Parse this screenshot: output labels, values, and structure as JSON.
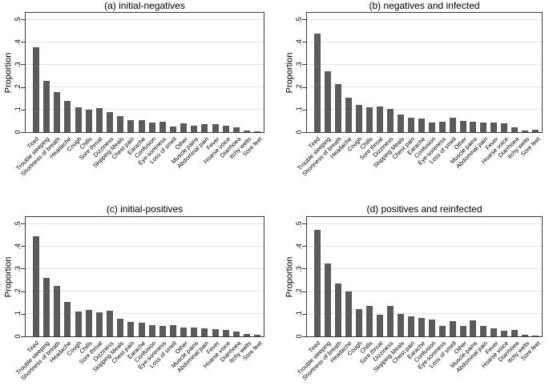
{
  "figure": {
    "ylabel": "Proportion",
    "bar_color": "#5b5b5b",
    "grid_color": "#e4e4e4",
    "axis_color": "#3a3a3a",
    "yticks": [
      {
        "value": 0.0,
        "label": "0"
      },
      {
        "value": 0.1,
        "label": ".1"
      },
      {
        "value": 0.2,
        "label": ".2"
      },
      {
        "value": 0.3,
        "label": ".3"
      },
      {
        "value": 0.4,
        "label": ".4"
      },
      {
        "value": 0.5,
        "label": ".5"
      }
    ]
  },
  "chart_data": [
    {
      "type": "bar",
      "title": "(a) initial-negatives",
      "xlabel": "",
      "ylabel": "Proportion",
      "ylim": [
        0,
        0.5
      ],
      "grid": true,
      "categories": [
        "Tired",
        "Trouble sleeping",
        "Shortness of breath",
        "Headache",
        "Cough",
        "Chills",
        "Sore throat",
        "Dizziness",
        "Skipping Meals",
        "Chest pain",
        "Earache",
        "Confusion",
        "Eye-soreness",
        "Loss of smell",
        "Other",
        "Muscle pains",
        "Abdominal pain",
        "Fever",
        "Hoarse voice",
        "Diarrhoea",
        "Itchy welts",
        "Sore feet"
      ],
      "values": [
        0.38,
        0.23,
        0.18,
        0.14,
        0.11,
        0.1,
        0.107,
        0.088,
        0.072,
        0.055,
        0.055,
        0.042,
        0.048,
        0.026,
        0.04,
        0.028,
        0.034,
        0.034,
        0.03,
        0.022,
        0.008,
        0.004
      ]
    },
    {
      "type": "bar",
      "title": "(b) negatives and infected",
      "xlabel": "",
      "ylabel": "Proportion",
      "ylim": [
        0,
        0.5
      ],
      "grid": true,
      "categories": [
        "Tired",
        "Trouble sleeping",
        "Shortness of breath",
        "Headache",
        "Cough",
        "Chills",
        "Sore throat",
        "Dizziness",
        "Skipping Meals",
        "Chest pain",
        "Earache",
        "Confusion",
        "Eye-soreness",
        "Loss of smell",
        "Other",
        "Muscle pains",
        "Abdominal pain",
        "Fever",
        "Hoarse voice",
        "Diarrhoea",
        "Itchy welts",
        "Sore feet"
      ],
      "values": [
        0.44,
        0.27,
        0.215,
        0.155,
        0.12,
        0.11,
        0.115,
        0.105,
        0.078,
        0.064,
        0.06,
        0.042,
        0.045,
        0.065,
        0.05,
        0.045,
        0.042,
        0.042,
        0.038,
        0.022,
        0.008,
        0.01
      ]
    },
    {
      "type": "bar",
      "title": "(c) initial-positives",
      "xlabel": "",
      "ylabel": "Proportion",
      "ylim": [
        0,
        0.5
      ],
      "grid": true,
      "categories": [
        "Tired",
        "Trouble sleeping",
        "Shortness of breath",
        "Headache",
        "Cough",
        "Chills",
        "Sore throat",
        "Dizziness",
        "Skipping Meals",
        "Chest pain",
        "Earache",
        "Confusion",
        "Eye-soreness",
        "Loss of smell",
        "Other",
        "Muscle pains",
        "Abdominal pain",
        "Fever",
        "Hoarse voice",
        "Diarrhoea",
        "Itchy welts",
        "Sore feet"
      ],
      "values": [
        0.445,
        0.26,
        0.225,
        0.155,
        0.112,
        0.117,
        0.107,
        0.114,
        0.08,
        0.066,
        0.059,
        0.05,
        0.045,
        0.05,
        0.041,
        0.041,
        0.035,
        0.033,
        0.027,
        0.021,
        0.01,
        0.008
      ]
    },
    {
      "type": "bar",
      "title": "(d) positives and reinfected",
      "xlabel": "",
      "ylabel": "Proportion",
      "ylim": [
        0,
        0.5
      ],
      "grid": true,
      "categories": [
        "Tired",
        "Trouble sleeping",
        "Shortness of breath",
        "Headache",
        "Cough",
        "Chills",
        "Sore throat",
        "Dizziness",
        "Skipping Meals",
        "Chest pain",
        "Earache",
        "Confusion",
        "Eye-soreness",
        "Loss of smell",
        "Other",
        "Muscle pains",
        "Abdominal pain",
        "Fever",
        "Hoarse voice",
        "Diarrhoea",
        "Itchy welts",
        "Sore feet"
      ],
      "values": [
        0.475,
        0.325,
        0.235,
        0.2,
        0.12,
        0.135,
        0.095,
        0.135,
        0.1,
        0.09,
        0.082,
        0.076,
        0.048,
        0.068,
        0.045,
        0.072,
        0.046,
        0.035,
        0.024,
        0.03,
        0.008,
        0.004
      ]
    }
  ]
}
